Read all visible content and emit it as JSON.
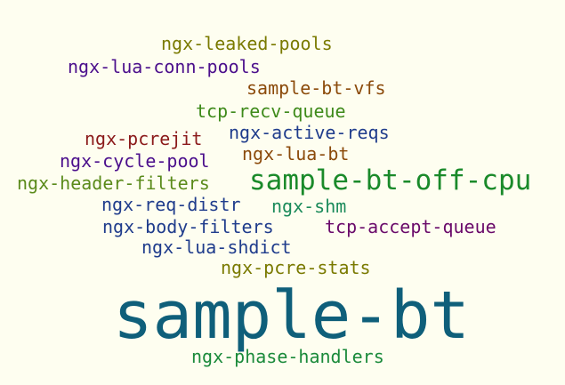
{
  "cloud": {
    "words": [
      {
        "text": "ngx-leaked-pools",
        "color": "#7a7a00"
      },
      {
        "text": "ngx-lua-conn-pools",
        "color": "#4b0f8c"
      },
      {
        "text": "sample-bt-vfs",
        "color": "#8b4a0a"
      },
      {
        "text": "tcp-recv-queue",
        "color": "#3e8a1a"
      },
      {
        "text": "ngx-pcrejit",
        "color": "#8b1a1a"
      },
      {
        "text": "ngx-active-reqs",
        "color": "#1f3c8c"
      },
      {
        "text": "ngx-cycle-pool",
        "color": "#4b0f8c"
      },
      {
        "text": "ngx-lua-bt",
        "color": "#8b4a0a"
      },
      {
        "text": "ngx-header-filters",
        "color": "#5a8a1a"
      },
      {
        "text": "sample-bt-off-cpu",
        "color": "#1a8a2a"
      },
      {
        "text": "ngx-req-distr",
        "color": "#1f3c8c"
      },
      {
        "text": "ngx-shm",
        "color": "#1a8a5a"
      },
      {
        "text": "ngx-body-filters",
        "color": "#1f3c8c"
      },
      {
        "text": "tcp-accept-queue",
        "color": "#6a0a6a"
      },
      {
        "text": "ngx-lua-shdict",
        "color": "#1f3c8c"
      },
      {
        "text": "ngx-pcre-stats",
        "color": "#7a7a00"
      },
      {
        "text": "sample-bt",
        "color": "#0f5f7a"
      },
      {
        "text": "ngx-phase-handlers",
        "color": "#1a8a3a"
      }
    ]
  }
}
